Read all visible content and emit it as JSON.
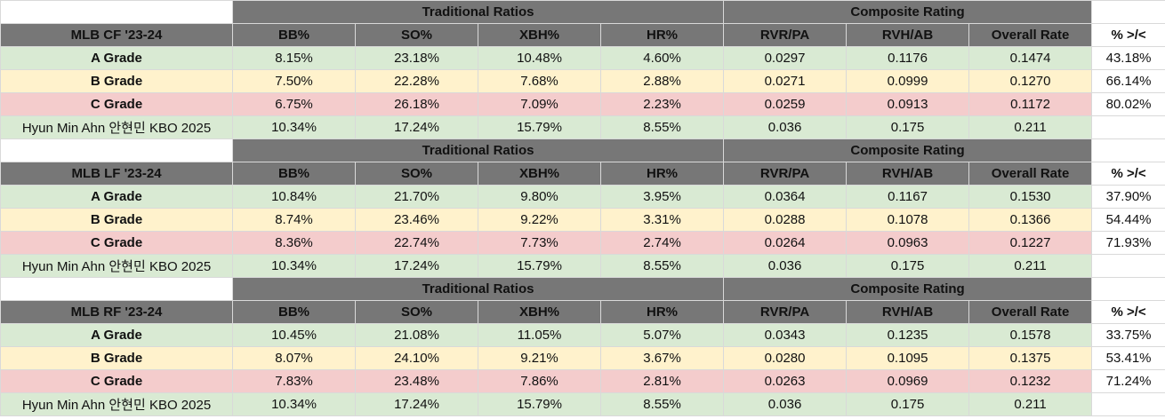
{
  "group_headers": {
    "traditional": "Traditional Ratios",
    "composite": "Composite Rating"
  },
  "columns": [
    "BB%",
    "SO%",
    "XBH%",
    "HR%",
    "RVR/PA",
    "RVH/AB",
    "Overall Rate"
  ],
  "pct_header": "% >/<",
  "sections": [
    {
      "title": "MLB CF '23-24",
      "rows": [
        {
          "label": "A Grade",
          "values": [
            "8.15%",
            "23.18%",
            "10.48%",
            "4.60%",
            "0.0297",
            "0.1176",
            "0.1474"
          ],
          "pct": "43.18%"
        },
        {
          "label": "B Grade",
          "values": [
            "7.50%",
            "22.28%",
            "7.68%",
            "2.88%",
            "0.0271",
            "0.0999",
            "0.1270"
          ],
          "pct": "66.14%"
        },
        {
          "label": "C Grade",
          "values": [
            "6.75%",
            "26.18%",
            "7.09%",
            "2.23%",
            "0.0259",
            "0.0913",
            "0.1172"
          ],
          "pct": "80.02%"
        },
        {
          "label": "Hyun Min Ahn 안현민 KBO 2025",
          "values": [
            "10.34%",
            "17.24%",
            "15.79%",
            "8.55%",
            "0.036",
            "0.175",
            "0.211"
          ],
          "pct": ""
        }
      ]
    },
    {
      "title": "MLB LF '23-24",
      "rows": [
        {
          "label": "A Grade",
          "values": [
            "10.84%",
            "21.70%",
            "9.80%",
            "3.95%",
            "0.0364",
            "0.1167",
            "0.1530"
          ],
          "pct": "37.90%"
        },
        {
          "label": "B Grade",
          "values": [
            "8.74%",
            "23.46%",
            "9.22%",
            "3.31%",
            "0.0288",
            "0.1078",
            "0.1366"
          ],
          "pct": "54.44%"
        },
        {
          "label": "C Grade",
          "values": [
            "8.36%",
            "22.74%",
            "7.73%",
            "2.74%",
            "0.0264",
            "0.0963",
            "0.1227"
          ],
          "pct": "71.93%"
        },
        {
          "label": "Hyun Min Ahn 안현민 KBO 2025",
          "values": [
            "10.34%",
            "17.24%",
            "15.79%",
            "8.55%",
            "0.036",
            "0.175",
            "0.211"
          ],
          "pct": ""
        }
      ]
    },
    {
      "title": "MLB RF '23-24",
      "rows": [
        {
          "label": "A Grade",
          "values": [
            "10.45%",
            "21.08%",
            "11.05%",
            "5.07%",
            "0.0343",
            "0.1235",
            "0.1578"
          ],
          "pct": "33.75%"
        },
        {
          "label": "B Grade",
          "values": [
            "8.07%",
            "24.10%",
            "9.21%",
            "3.67%",
            "0.0280",
            "0.1095",
            "0.1375"
          ],
          "pct": "53.41%"
        },
        {
          "label": "C Grade",
          "values": [
            "7.83%",
            "23.48%",
            "7.86%",
            "2.81%",
            "0.0263",
            "0.0969",
            "0.1232"
          ],
          "pct": "71.24%"
        },
        {
          "label": "Hyun Min Ahn 안현민 KBO 2025",
          "values": [
            "10.34%",
            "17.24%",
            "15.79%",
            "8.55%",
            "0.036",
            "0.175",
            "0.211"
          ],
          "pct": ""
        }
      ]
    }
  ],
  "colors": {
    "header_gray": "#777777",
    "grade_a": "#d9ead3",
    "grade_b": "#fff2cc",
    "grade_c": "#f4cccc",
    "player": "#d9ead3"
  }
}
